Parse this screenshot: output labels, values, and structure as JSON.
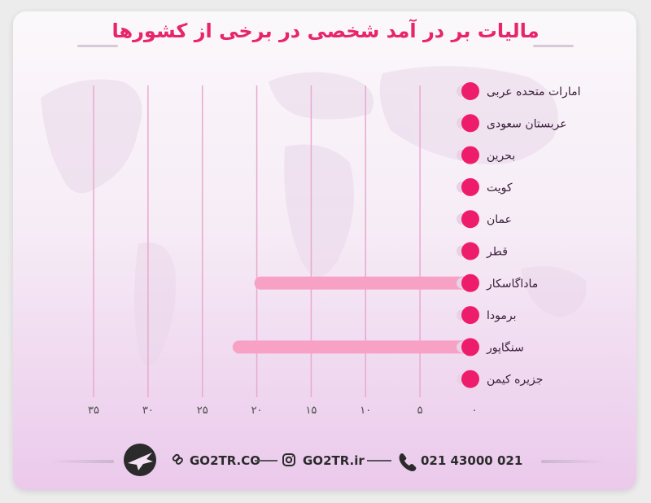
{
  "title": "مالیات بر در آمد شخصی در برخی از کشورها",
  "chart_data": {
    "type": "bar",
    "orientation": "horizontal",
    "title": "مالیات بر در آمد شخصی در برخی از کشورها",
    "categories": [
      "امارات متحده عربی",
      "عربستان سعودی",
      "بحرین",
      "کویت",
      "عمان",
      "قطر",
      "ماداگاسکار",
      "برمودا",
      "سنگاپور",
      "جزیره کیمن"
    ],
    "values": [
      0,
      0,
      0,
      0,
      0,
      0,
      20,
      0,
      22,
      0
    ],
    "x_ticks": [
      "۰",
      "۵",
      "۱۰",
      "۱۵",
      "۲۰",
      "۲۵",
      "۳۰",
      "۳۵"
    ],
    "xlim": [
      0,
      35
    ],
    "x_reversed": true,
    "grid": true,
    "colors": {
      "bar": "#f7a1c4",
      "dot": "#ee1d6b",
      "grid": "#e9a9cf",
      "label": "#3a1e3a",
      "title": "#e8246b"
    }
  },
  "footer": {
    "website": "GO2TR.CO",
    "instagram": "GO2TR.ir",
    "phone": "021 43000 021",
    "icons": [
      "logo-plane-icon",
      "link-icon",
      "instagram-icon",
      "phone-icon"
    ]
  }
}
